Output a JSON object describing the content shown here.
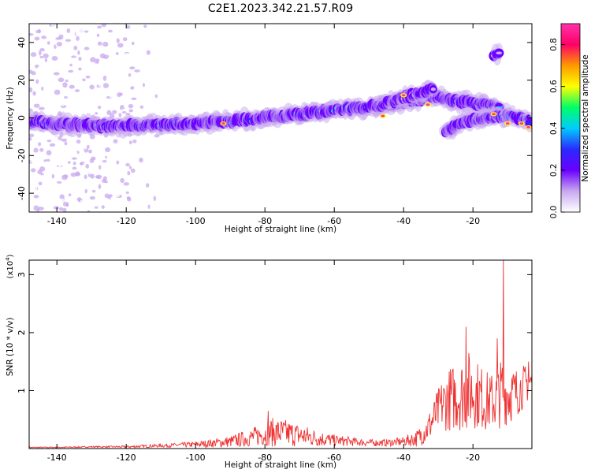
{
  "figure_title": "C2E1.2023.342.21.57.R09",
  "colors": {
    "snr_line": "#ee3333",
    "axis": "#000000",
    "spectrogram_background": "#ffffff",
    "colormap": [
      "#ffffff",
      "#c8a8f0",
      "#6a00ff",
      "#2a2aff",
      "#00ccff",
      "#00ff66",
      "#ffff00",
      "#ff9900",
      "#ff0066",
      "#ff33aa"
    ]
  },
  "chart_data": [
    {
      "type": "heatmap",
      "title": "",
      "xlabel": "Height of straight line (km)",
      "ylabel": "Frequency (Hz)",
      "xlim": [
        -148,
        -3
      ],
      "ylim": [
        -50,
        50
      ],
      "xticks": [
        -140,
        -120,
        -100,
        -80,
        -60,
        -40,
        -20
      ],
      "xtick_labels": [
        "-140",
        "-120",
        "-100",
        "-80",
        "-60",
        "-40",
        "-20"
      ],
      "yticks": [
        -40,
        -20,
        0,
        20,
        40
      ],
      "ytick_labels": [
        "-40",
        "-20",
        "0",
        "20",
        "40"
      ],
      "grid": false,
      "colorbar": {
        "label": "Normalized spectral amplitude",
        "range": [
          0,
          0.9
        ],
        "ticks": [
          0,
          0.2,
          0.4,
          0.6,
          0.8
        ],
        "tick_labels": [
          "0.0",
          "0.2",
          "0.4",
          "0.6",
          "0.8"
        ],
        "position": "right"
      },
      "ridges": [
        {
          "description": "main frequency ridge",
          "points": [
            [
              -148,
              -2
            ],
            [
              -140,
              -3.5
            ],
            [
              -130,
              -4
            ],
            [
              -120,
              -4
            ],
            [
              -110,
              -3.5
            ],
            [
              -100,
              -3
            ],
            [
              -90,
              -2
            ],
            [
              -80,
              0
            ],
            [
              -70,
              2
            ],
            [
              -60,
              4
            ],
            [
              -50,
              6
            ],
            [
              -40,
              8
            ],
            [
              -33,
              11
            ],
            [
              -30,
              11
            ],
            [
              -25,
              9
            ],
            [
              -20,
              8
            ],
            [
              -15,
              6
            ],
            [
              -12,
              6
            ]
          ],
          "typical_amplitude": 0.3
        },
        {
          "description": "upper branch",
          "points": [
            [
              -48,
              5
            ],
            [
              -45,
              8
            ],
            [
              -40,
              11
            ],
            [
              -35,
              13
            ],
            [
              -31,
              16
            ]
          ],
          "typical_amplitude": 0.2
        },
        {
          "description": "lower branch",
          "points": [
            [
              -28,
              -7
            ],
            [
              -25,
              -4
            ],
            [
              -20,
              -1
            ],
            [
              -15,
              1
            ],
            [
              -10,
              1
            ],
            [
              -5,
              0
            ],
            [
              -3,
              -3
            ]
          ],
          "typical_amplitude": 0.3
        },
        {
          "description": "isolated high feature",
          "points": [
            [
              -14,
              33
            ],
            [
              -12,
              35
            ]
          ],
          "typical_amplitude": 0.1
        }
      ],
      "hot_spots": [
        [
          -92,
          -3
        ],
        [
          -46,
          1
        ],
        [
          -40,
          12
        ],
        [
          -33,
          7
        ],
        [
          -14,
          2
        ],
        [
          -10,
          -3
        ],
        [
          -6,
          -3
        ],
        [
          -4,
          -5
        ]
      ],
      "noise_region": {
        "x_from": -148,
        "x_to": -118,
        "amplitude": 0.05
      }
    },
    {
      "type": "line",
      "title": "",
      "xlabel": "Height of straight line (km)",
      "ylabel": "SNR (10 * v/v)",
      "y_multiplier_label": "(x10",
      "y_multiplier_exponent": "4",
      "y_multiplier_close": ")",
      "xlim": [
        -148,
        -3
      ],
      "ylim": [
        0,
        3.25
      ],
      "xticks": [
        -140,
        -120,
        -100,
        -80,
        -60,
        -40,
        -20
      ],
      "xtick_labels": [
        "-140",
        "-120",
        "-100",
        "-80",
        "-60",
        "-40",
        "-20"
      ],
      "yticks": [
        1,
        2,
        3
      ],
      "ytick_labels": [
        "1",
        "2",
        "3"
      ],
      "grid": false,
      "series": [
        {
          "envelope": {
            "x": [
              -148,
              -140,
              -130,
              -120,
              -110,
              -100,
              -90,
              -85,
              -80,
              -78,
              -75,
              -72,
              -70,
              -65,
              -60,
              -55,
              -50,
              -45,
              -40,
              -36,
              -33,
              -31,
              -29,
              -27,
              -25,
              -23,
              -21,
              -19,
              -17,
              -15,
              -13,
              -11.5,
              -10,
              -8,
              -6,
              -5,
              -3
            ],
            "mean": [
              0.02,
              0.02,
              0.03,
              0.03,
              0.05,
              0.07,
              0.12,
              0.18,
              0.25,
              0.28,
              0.27,
              0.25,
              0.23,
              0.18,
              0.14,
              0.12,
              0.1,
              0.1,
              0.12,
              0.18,
              0.35,
              0.55,
              0.75,
              0.85,
              0.9,
              0.95,
              1.0,
              0.95,
              0.85,
              0.8,
              0.85,
              1.0,
              0.95,
              0.95,
              1.05,
              1.1,
              1.15
            ],
            "spread": [
              0.01,
              0.01,
              0.01,
              0.02,
              0.03,
              0.05,
              0.1,
              0.15,
              0.2,
              0.25,
              0.25,
              0.22,
              0.2,
              0.15,
              0.1,
              0.08,
              0.06,
              0.06,
              0.08,
              0.15,
              0.25,
              0.35,
              0.45,
              0.55,
              0.6,
              0.65,
              0.7,
              0.6,
              0.55,
              0.5,
              0.55,
              0.6,
              0.55,
              0.45,
              0.4,
              0.35,
              0.3
            ]
          },
          "peaks": [
            [
              -79,
              0.65
            ],
            [
              -22,
              2.1
            ],
            [
              -11.2,
              3.25
            ],
            [
              -13,
              1.9
            ],
            [
              -4,
              1.5
            ]
          ]
        }
      ]
    }
  ]
}
